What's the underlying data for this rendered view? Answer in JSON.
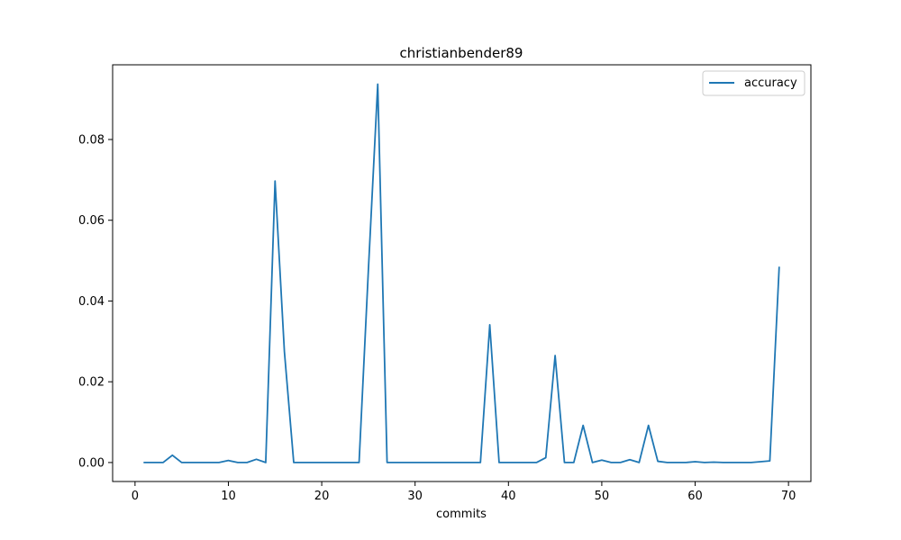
{
  "chart_data": {
    "type": "line",
    "title": "christianbender89",
    "xlabel": "commits",
    "ylabel": "",
    "xlim": [
      -2.4,
      72.4
    ],
    "ylim": [
      -0.0047,
      0.0985
    ],
    "xticks": [
      0,
      10,
      20,
      30,
      40,
      50,
      60,
      70
    ],
    "yticks": [
      0.0,
      0.02,
      0.04,
      0.06,
      0.08
    ],
    "ytick_labels": [
      "0.00",
      "0.02",
      "0.04",
      "0.06",
      "0.08"
    ],
    "grid": false,
    "legend": {
      "placement": "top-right",
      "entries": [
        "accuracy"
      ]
    },
    "series": [
      {
        "name": "accuracy",
        "color": "#1f77b4",
        "x": [
          1,
          2,
          3,
          4,
          5,
          6,
          7,
          8,
          9,
          10,
          11,
          12,
          13,
          14,
          15,
          16,
          17,
          18,
          19,
          20,
          21,
          22,
          23,
          24,
          25,
          26,
          27,
          28,
          29,
          30,
          31,
          32,
          33,
          34,
          35,
          36,
          37,
          38,
          39,
          40,
          41,
          42,
          43,
          44,
          45,
          46,
          47,
          48,
          49,
          50,
          51,
          52,
          53,
          54,
          55,
          56,
          57,
          58,
          59,
          60,
          61,
          62,
          63,
          64,
          65,
          66,
          67,
          68,
          69
        ],
        "values": [
          0.0,
          0.0,
          0.0,
          0.0018,
          0.0,
          0.0,
          0.0,
          0.0,
          0.0,
          0.0005,
          0.0,
          0.0,
          0.0008,
          0.0,
          0.0697,
          0.0275,
          0.0,
          0.0,
          0.0,
          0.0,
          0.0,
          0.0,
          0.0,
          0.0,
          0.0478,
          0.0937,
          0.0,
          0.0,
          0.0,
          0.0,
          0.0,
          0.0,
          0.0,
          0.0,
          0.0,
          0.0,
          0.0,
          0.0341,
          0.0,
          0.0,
          0.0,
          0.0,
          0.0,
          0.0012,
          0.0265,
          0.0,
          0.0,
          0.0092,
          0.0,
          0.0006,
          0.0,
          0.0,
          0.0007,
          0.0,
          0.0092,
          0.0003,
          0.0,
          0.0,
          0.0,
          0.0002,
          0.0,
          0.0001,
          0.0,
          0.0,
          0.0,
          0.0,
          0.0002,
          0.0004,
          0.0483
        ]
      }
    ]
  }
}
